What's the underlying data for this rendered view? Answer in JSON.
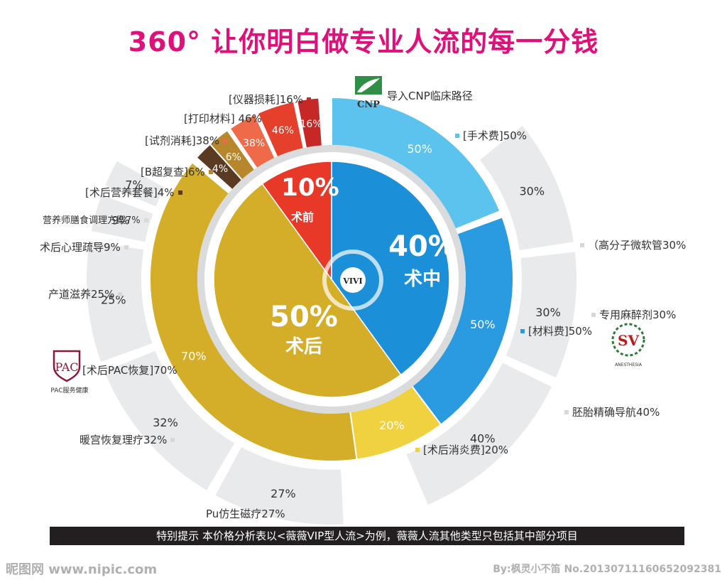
{
  "title": "360°  让你明白做专业人流的每一分钱",
  "notice": "特别提示  本价格分析表以<薇薇VIP型人流>为例，薇薇人流其他类型只包括其中部分项目",
  "watermark": "昵图网 www.nipic.com",
  "credit": "By:枫灵小不笛 No.20130711160652092381",
  "center_label": "VIVI",
  "logos": {
    "cnp": {
      "text": "CNP",
      "icon": "cnp-leaf-icon"
    },
    "pac": {
      "text": "PAC",
      "caption": "PAC服务健康",
      "icon": "pac-shield-icon"
    },
    "anesthesia": {
      "text": "SV",
      "caption": "ANESTHESIA",
      "icon": "laurel-icon"
    }
  },
  "colors": {
    "before": "#e83828",
    "during": "#1b8fd8",
    "after": "#d4ae28",
    "outer": "#e8eaec"
  },
  "chart_data": {
    "type": "pie",
    "title": "360°  让你明白做专业人流的每一分钱",
    "inner": [
      {
        "name": "术前",
        "value": 10,
        "label": "10%",
        "color": "#e83828"
      },
      {
        "name": "术中",
        "value": 40,
        "label": "40%",
        "color": "#1b8fd8"
      },
      {
        "name": "术后",
        "value": 50,
        "label": "50%",
        "color": "#d4ae28"
      }
    ],
    "middle": [
      {
        "parent": "术中",
        "name": "手术费",
        "value": 50,
        "label": "50%",
        "legend": "[手术费]50%",
        "color": "#5cc3ee"
      },
      {
        "parent": "术中",
        "name": "材料费",
        "value": 50,
        "label": "50%",
        "legend": "[材料费]50%",
        "color": "#2a9be0"
      },
      {
        "parent": "术后",
        "name": "术后消炎费",
        "value": 20,
        "label": "20%",
        "legend": "[术后消炎费]20%",
        "color": "#f0d140"
      },
      {
        "parent": "术后",
        "name": "术后PAC恢复",
        "value": 70,
        "label": "70%",
        "legend": "[术后PAC恢复]70%",
        "color": "#d4ae28"
      },
      {
        "parent": "术前",
        "name": "术后营养套餐",
        "value": 4,
        "label": "4%",
        "legend": "[术后营养套餐]4%",
        "color": "#5a3a20"
      },
      {
        "parent": "术前",
        "name": "B超复查",
        "value": 6,
        "label": "6%",
        "legend": "[B超复查]6%",
        "color": "#b8862c"
      },
      {
        "parent": "术前",
        "name": "试剂消耗",
        "value": 38,
        "label": "38%",
        "legend": "[试剂消耗]38%",
        "color": "#ef6a48"
      },
      {
        "parent": "术前",
        "name": "打印材料",
        "value": 46,
        "label": "46%",
        "legend": "[打印材料] 46%",
        "color": "#e5402c"
      },
      {
        "parent": "术前",
        "name": "仪器损耗",
        "value": 16,
        "label": "16%",
        "legend": "[仪器损耗]16%",
        "color": "#c62828"
      }
    ],
    "outer": [
      {
        "parent": "材料费",
        "name": "高分子微软管",
        "value": 30,
        "label": "30%",
        "legend": "（高分子微软管30%"
      },
      {
        "parent": "材料费",
        "name": "专用麻醉剂",
        "value": 30,
        "label": "30%",
        "legend": "专用麻醉剂30%"
      },
      {
        "parent": "材料费",
        "name": "胚胎精确导航",
        "value": 40,
        "label": "40%",
        "legend": "胚胎精确导航40%"
      },
      {
        "parent": "术后PAC恢复",
        "name": "Pu仿生磁疗",
        "value": 27,
        "label": "27%",
        "legend": "Pu仿生磁疗27%"
      },
      {
        "parent": "术后PAC恢复",
        "name": "暖宫恢复理疗",
        "value": 32,
        "label": "32%",
        "legend": "暖宫恢复理疗32%"
      },
      {
        "parent": "术后PAC恢复",
        "name": "产道滋养",
        "value": 25,
        "label": "25%",
        "legend": "产道滋养25%"
      },
      {
        "parent": "术后PAC恢复",
        "name": "术后心理疏导",
        "value": 9,
        "label": "9%",
        "legend": "术后心理疏导9%"
      },
      {
        "parent": "术后PAC恢复",
        "name": "营养师膳食调理方案",
        "value": 7,
        "label": "7%",
        "legend": "营养师膳食调理方案7%"
      }
    ],
    "extra_labels": [
      "导入CNP临床路径"
    ]
  }
}
